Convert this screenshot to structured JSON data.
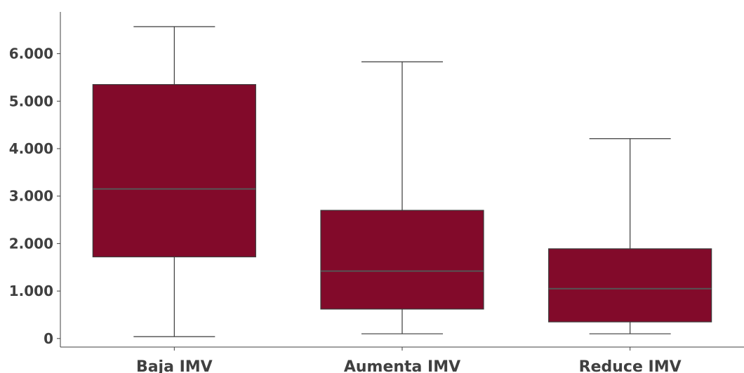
{
  "chart_data": {
    "type": "boxplot",
    "title": "",
    "xlabel": "",
    "ylabel": "",
    "ylim": [
      -180,
      6880
    ],
    "yticks": [
      0,
      1000,
      2000,
      3000,
      4000,
      5000,
      6000
    ],
    "ytick_labels": [
      "0",
      "1.000",
      "2.000",
      "3.000",
      "4.000",
      "5.000",
      "6.000"
    ],
    "categories": [
      "Baja IMV",
      "Aumenta IMV",
      "Reduce IMV"
    ],
    "boxes": [
      {
        "min": 40,
        "q1": 1720,
        "median": 3150,
        "q3": 5350,
        "max": 6570
      },
      {
        "min": 100,
        "q1": 620,
        "median": 1420,
        "q3": 2700,
        "max": 5830
      },
      {
        "min": 100,
        "q1": 350,
        "median": 1050,
        "q3": 1890,
        "max": 4210
      }
    ],
    "box_color": "#820a2a",
    "grid": false,
    "legend": "none"
  }
}
